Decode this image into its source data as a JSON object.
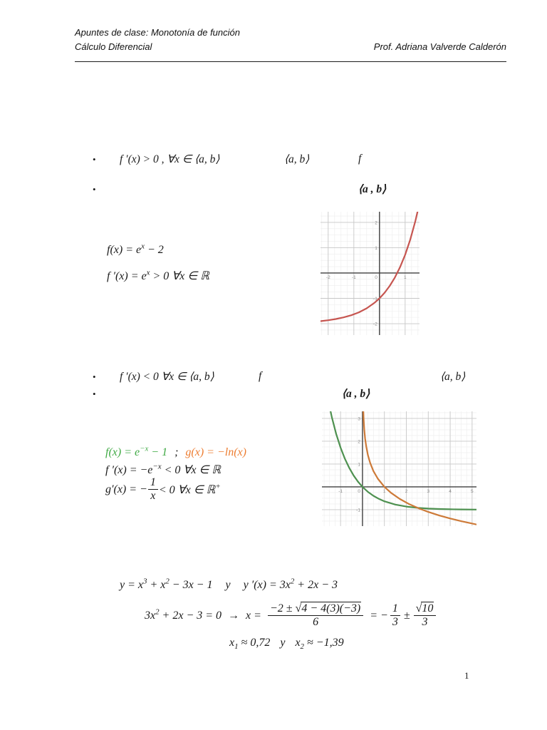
{
  "glyphs": {
    "bullet": "•"
  },
  "header": {
    "course_note": "Apuntes de clase: Monotonía de  función",
    "course": "Cálculo Diferencial",
    "professor": "Prof. Adriana Valverde Calderón"
  },
  "bullet1": {
    "condition": "f ′(x) > 0 , ∀x ∈ ⟨a, b⟩",
    "interval": "⟨a, b⟩",
    "function_symbol": "f"
  },
  "bullet2": {
    "interval_bold": "⟨a , b⟩"
  },
  "bullet3": {
    "condition": "f ′(x) < 0  ∀x ∈ ⟨a, b⟩",
    "function_symbol": "f",
    "interval": "⟨a, b⟩"
  },
  "bullet4": {
    "interval_bold": "⟨a , b⟩"
  },
  "example1": {
    "f_base": "f(x) = e",
    "f_sup": "x",
    "f_rest": " − 2",
    "df_base": "f ′(x) = e",
    "df_sup": "x",
    "df_rest": " > 0  ∀x ∈ ℝ"
  },
  "example2": {
    "f_base": "f(x) = e",
    "f_sup": "−x",
    "f_rest": " − 1",
    "separator": ";",
    "g_formula": "g(x) = −ln(x)",
    "df_base": "f ′(x) = −e",
    "df_sup": "−x",
    "df_rest": " < 0  ∀x ∈ ℝ",
    "dg_base": "g′(x) = −",
    "dg_num": "1",
    "dg_den": "x",
    "dg_rest": " < 0  ∀x ∈ ℝ",
    "dg_sup": "+"
  },
  "cubic": {
    "eq1": {
      "a": "y = x",
      "a_sup": "3",
      "b": " + x",
      "b_sup": "2",
      "c": " − 3x − 1",
      "conj": "y",
      "d": "y ′(x) = 3x",
      "d_sup": "2",
      "e": " + 2x − 3"
    },
    "eq2": {
      "lhs": "3x",
      "lhs_sup": "2",
      "lhs_rest": " + 2x − 3 = 0",
      "arrow": "→",
      "x_eq": "x =",
      "num_pre": "−2 ± ",
      "sqrt_sign": "√",
      "radicand": "4 − 4(3)(−3)",
      "den": "6",
      "eq_sign": "= −",
      "frac2_num": "1",
      "frac2_den": "3",
      "pm": "±",
      "frac3_sqrt": "√",
      "frac3_rad": "10",
      "frac3_den": "3"
    },
    "eq3": {
      "x1_base": "x",
      "x1_sub": "1",
      "x1_val": " ≈ 0,72",
      "conj": "y",
      "x2_base": "x",
      "x2_sub": "2",
      "x2_val": " ≈ −1,39"
    }
  },
  "page": {
    "number": "1"
  },
  "chart_data": [
    {
      "id": "exp-growth",
      "type": "line",
      "title": "f(x) = e^x − 2",
      "xlabel": "",
      "ylabel": "",
      "xlim": [
        -2.3,
        1.56
      ],
      "ylim": [
        -2.45,
        2.42
      ],
      "x_ticks": [
        -2,
        -1,
        0,
        1
      ],
      "y_ticks": [
        -2,
        -1,
        1,
        2
      ],
      "grid_minor": 0.25,
      "grid_major": 1,
      "legend": "none",
      "series": [
        {
          "name": "f(x) = e^x − 2",
          "color": "#c65550",
          "points": [
            [
              -2.3,
              -1.9
            ],
            [
              -2,
              -1.865
            ],
            [
              -1.7,
              -1.817
            ],
            [
              -1.4,
              -1.753
            ],
            [
              -1.1,
              -1.667
            ],
            [
              -0.8,
              -1.551
            ],
            [
              -0.5,
              -1.393
            ],
            [
              -0.2,
              -1.181
            ],
            [
              0,
              -1
            ],
            [
              0.2,
              -0.779
            ],
            [
              0.4,
              -0.508
            ],
            [
              0.6,
              -0.178
            ],
            [
              0.8,
              0.226
            ],
            [
              1,
              0.718
            ],
            [
              1.2,
              1.32
            ],
            [
              1.4,
              2.055
            ],
            [
              1.56,
              2.76
            ]
          ]
        }
      ]
    },
    {
      "id": "exp-decay-and-neg-log",
      "type": "line",
      "title": "f(x) = e^−x − 1 and g(x) = −ln(x)",
      "xlabel": "",
      "ylabel": "",
      "xlim": [
        -1.85,
        5.2
      ],
      "ylim": [
        -1.72,
        3.31
      ],
      "x_ticks": [
        -1,
        0,
        1,
        2,
        3,
        4,
        5
      ],
      "y_ticks": [
        -1,
        1,
        2,
        3
      ],
      "grid_minor": 0.25,
      "grid_major": 1,
      "legend": "none",
      "series": [
        {
          "name": "f(x) = e^−x − 1",
          "color": "#4E9150",
          "points": [
            [
              -1.6,
              3.953
            ],
            [
              -1.4,
              3.055
            ],
            [
              -1.2,
              2.32
            ],
            [
              -1,
              1.718
            ],
            [
              -0.8,
              1.226
            ],
            [
              -0.6,
              0.822
            ],
            [
              -0.4,
              0.492
            ],
            [
              -0.2,
              0.221
            ],
            [
              0,
              0
            ],
            [
              0.25,
              -0.221
            ],
            [
              0.5,
              -0.393
            ],
            [
              0.75,
              -0.528
            ],
            [
              1,
              -0.632
            ],
            [
              1.5,
              -0.777
            ],
            [
              2,
              -0.865
            ],
            [
              2.5,
              -0.918
            ],
            [
              3,
              -0.95
            ],
            [
              3.5,
              -0.97
            ],
            [
              4,
              -0.982
            ],
            [
              4.5,
              -0.989
            ],
            [
              5.2,
              -0.994
            ]
          ]
        },
        {
          "name": "g(x) = −ln(x)",
          "color": "#CD7A38",
          "points": [
            [
              0.03,
              3.507
            ],
            [
              0.05,
              2.996
            ],
            [
              0.08,
              2.526
            ],
            [
              0.12,
              2.12
            ],
            [
              0.17,
              1.772
            ],
            [
              0.25,
              1.386
            ],
            [
              0.35,
              1.05
            ],
            [
              0.5,
              0.693
            ],
            [
              0.7,
              0.357
            ],
            [
              1,
              0
            ],
            [
              1.3,
              -0.262
            ],
            [
              1.7,
              -0.531
            ],
            [
              2.1,
              -0.742
            ],
            [
              2.6,
              -0.956
            ],
            [
              3,
              -1.099
            ],
            [
              3.5,
              -1.253
            ],
            [
              4,
              -1.386
            ],
            [
              4.5,
              -1.504
            ],
            [
              5.2,
              -1.649
            ]
          ]
        }
      ]
    }
  ]
}
